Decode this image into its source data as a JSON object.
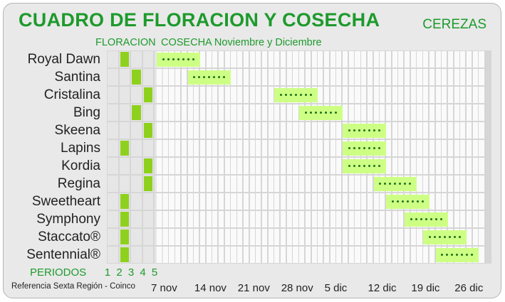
{
  "title": "CUADRO DE FLORACION Y COSECHA",
  "fruit": "CEREZAS",
  "header_floracion": "FLORACION",
  "header_cosecha": "COSECHA Noviembre y Diciembre",
  "periods_label": "PERIODOS",
  "periods": [
    "1",
    "2",
    "3",
    "4",
    "5"
  ],
  "reference": "Referencia Sexta Región - Coinco",
  "dates": [
    "7 nov",
    "14 nov",
    "21 nov",
    "28 nov",
    "5 dic",
    "12 dic",
    "19 dic",
    "26 dic"
  ],
  "colors": {
    "title_green": "#1d9a2c",
    "flower_period": "#8ed11d",
    "harvest_window": "#ceff85"
  },
  "varieties": [
    {
      "name": "Royal Dawn",
      "flowering_period": 2,
      "harvest_start_day": 0,
      "harvest_days": 7
    },
    {
      "name": "Santina",
      "flowering_period": 3,
      "harvest_start_day": 5,
      "harvest_days": 7
    },
    {
      "name": "Cristalina",
      "flowering_period": 4,
      "harvest_start_day": 19,
      "harvest_days": 7
    },
    {
      "name": "Bing",
      "flowering_period": 3,
      "harvest_start_day": 23,
      "harvest_days": 7
    },
    {
      "name": "Skeena",
      "flowering_period": 4,
      "harvest_start_day": 30,
      "harvest_days": 7
    },
    {
      "name": "Lapins",
      "flowering_period": 2,
      "harvest_start_day": 30,
      "harvest_days": 7
    },
    {
      "name": "Kordia",
      "flowering_period": 4,
      "harvest_start_day": 30,
      "harvest_days": 7
    },
    {
      "name": "Regina",
      "flowering_period": 4,
      "harvest_start_day": 35,
      "harvest_days": 7
    },
    {
      "name": "Sweetheart",
      "flowering_period": 2,
      "harvest_start_day": 37,
      "harvest_days": 7
    },
    {
      "name": "Symphony",
      "flowering_period": 2,
      "harvest_start_day": 40,
      "harvest_days": 7
    },
    {
      "name": "Staccato®",
      "flowering_period": 2,
      "harvest_start_day": 43,
      "harvest_days": 7
    },
    {
      "name": "Sentennial®",
      "flowering_period": 2,
      "harvest_start_day": 45,
      "harvest_days": 7
    }
  ]
}
